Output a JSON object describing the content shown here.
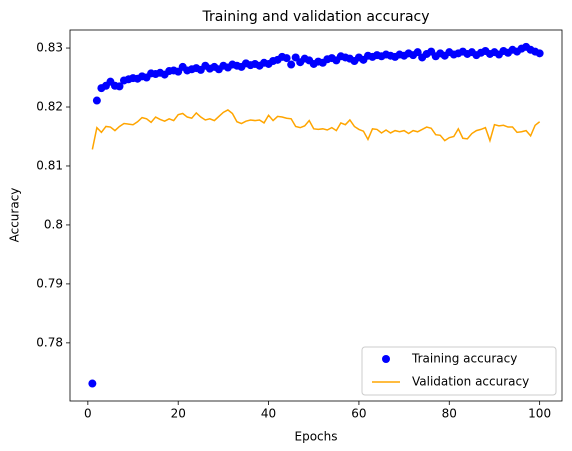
{
  "chart_data": {
    "type": "line",
    "title": "Training and validation accuracy",
    "xlabel": "Epochs",
    "ylabel": "Accuracy",
    "x": [
      1,
      2,
      3,
      4,
      5,
      6,
      7,
      8,
      9,
      10,
      11,
      12,
      13,
      14,
      15,
      16,
      17,
      18,
      19,
      20,
      21,
      22,
      23,
      24,
      25,
      26,
      27,
      28,
      29,
      30,
      31,
      32,
      33,
      34,
      35,
      36,
      37,
      38,
      39,
      40,
      41,
      42,
      43,
      44,
      45,
      46,
      47,
      48,
      49,
      50,
      51,
      52,
      53,
      54,
      55,
      56,
      57,
      58,
      59,
      60,
      61,
      62,
      63,
      64,
      65,
      66,
      67,
      68,
      69,
      70,
      71,
      72,
      73,
      74,
      75,
      76,
      77,
      78,
      79,
      80,
      81,
      82,
      83,
      84,
      85,
      86,
      87,
      88,
      89,
      90,
      91,
      92,
      93,
      94,
      95,
      96,
      97,
      98,
      99,
      100
    ],
    "series": [
      {
        "name": "Training accuracy",
        "color": "#0000ff",
        "mode": "markers",
        "values": [
          0.7731,
          0.8211,
          0.8232,
          0.8236,
          0.8243,
          0.8236,
          0.8235,
          0.8245,
          0.8247,
          0.8249,
          0.8248,
          0.8252,
          0.825,
          0.8257,
          0.8256,
          0.8258,
          0.8255,
          0.8261,
          0.8262,
          0.826,
          0.8268,
          0.8262,
          0.8264,
          0.8266,
          0.8263,
          0.827,
          0.8265,
          0.8268,
          0.8264,
          0.827,
          0.8267,
          0.8272,
          0.827,
          0.8268,
          0.8274,
          0.8271,
          0.8273,
          0.827,
          0.8275,
          0.8273,
          0.8278,
          0.828,
          0.8285,
          0.8283,
          0.8272,
          0.8284,
          0.8276,
          0.8282,
          0.8279,
          0.8273,
          0.8277,
          0.8275,
          0.8281,
          0.8283,
          0.8279,
          0.8286,
          0.8284,
          0.8282,
          0.8278,
          0.8284,
          0.828,
          0.8287,
          0.8285,
          0.8288,
          0.8286,
          0.8289,
          0.8287,
          0.8285,
          0.8289,
          0.8287,
          0.8291,
          0.8288,
          0.8293,
          0.8284,
          0.829,
          0.8294,
          0.8286,
          0.8291,
          0.8287,
          0.8293,
          0.8289,
          0.8291,
          0.8294,
          0.829,
          0.8293,
          0.8288,
          0.8292,
          0.8295,
          0.829,
          0.8293,
          0.8289,
          0.8295,
          0.8292,
          0.8297,
          0.8294,
          0.8299,
          0.8302,
          0.8297,
          0.8294,
          0.8291
        ]
      },
      {
        "name": "Validation accuracy",
        "color": "#ffa500",
        "mode": "line",
        "values": [
          0.8128,
          0.8165,
          0.8157,
          0.8167,
          0.8166,
          0.816,
          0.8167,
          0.8172,
          0.8171,
          0.817,
          0.8175,
          0.8182,
          0.818,
          0.8174,
          0.8183,
          0.8179,
          0.8176,
          0.818,
          0.8177,
          0.8187,
          0.8189,
          0.8183,
          0.8181,
          0.819,
          0.8183,
          0.8178,
          0.818,
          0.8177,
          0.8184,
          0.8191,
          0.8195,
          0.8189,
          0.8175,
          0.8172,
          0.8176,
          0.8178,
          0.8177,
          0.8178,
          0.8173,
          0.8186,
          0.8177,
          0.8184,
          0.8183,
          0.8181,
          0.818,
          0.8167,
          0.8165,
          0.8168,
          0.8177,
          0.8163,
          0.8162,
          0.8163,
          0.8161,
          0.8165,
          0.816,
          0.8173,
          0.817,
          0.8178,
          0.8167,
          0.8162,
          0.8159,
          0.8145,
          0.8163,
          0.8162,
          0.8156,
          0.8161,
          0.8156,
          0.816,
          0.8158,
          0.816,
          0.8155,
          0.816,
          0.8158,
          0.8162,
          0.8166,
          0.8164,
          0.8153,
          0.8152,
          0.8143,
          0.8148,
          0.815,
          0.8163,
          0.8147,
          0.8146,
          0.8155,
          0.816,
          0.8162,
          0.8165,
          0.8143,
          0.817,
          0.8168,
          0.8169,
          0.8166,
          0.8166,
          0.8157,
          0.8158,
          0.816,
          0.8151,
          0.8169,
          0.8175
        ]
      }
    ],
    "xlim": [
      -3.95,
      104.95
    ],
    "xticks": [
      0,
      20,
      40,
      60,
      80,
      100
    ],
    "ylim": [
      0.77014,
      0.83306
    ],
    "yticks": [
      0.78,
      0.79,
      0.8,
      0.81,
      0.82,
      0.83
    ],
    "legend": "lower right"
  }
}
